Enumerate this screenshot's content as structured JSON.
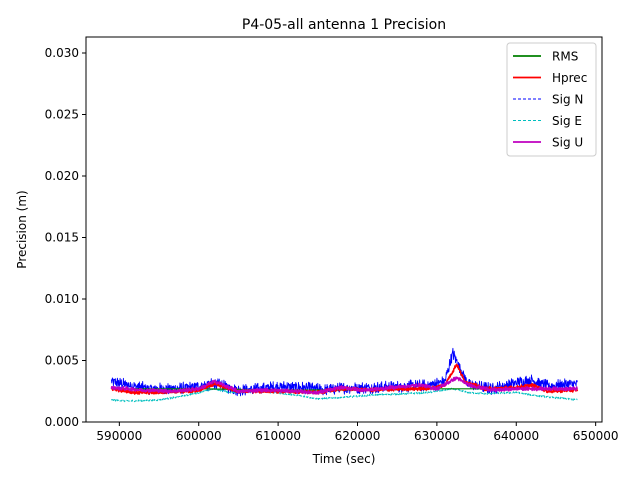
{
  "chart_data": {
    "type": "line",
    "title": "P4-05-all antenna 1 Precision",
    "xlabel": "Time (sec)",
    "ylabel": "Precision (m)",
    "xlim": [
      585800,
      650800
    ],
    "ylim": [
      0.0,
      0.0313
    ],
    "xticks": [
      590000,
      600000,
      610000,
      620000,
      630000,
      640000,
      650000
    ],
    "xtick_labels": [
      "590000",
      "600000",
      "610000",
      "620000",
      "630000",
      "640000",
      "650000"
    ],
    "yticks": [
      0.0,
      0.005,
      0.01,
      0.015,
      0.02,
      0.025,
      0.03
    ],
    "ytick_labels": [
      "0.000",
      "0.005",
      "0.010",
      "0.015",
      "0.020",
      "0.025",
      "0.030"
    ],
    "legend_position": "top-right",
    "x_range": [
      589000,
      647700
    ],
    "series": [
      {
        "name": "RMS",
        "color": "#008000",
        "style": "solid",
        "noise": 0,
        "points": [
          [
            589000,
            0.0027
          ],
          [
            600000,
            0.0027
          ],
          [
            610000,
            0.0026
          ],
          [
            620000,
            0.0026
          ],
          [
            630000,
            0.0027
          ],
          [
            640000,
            0.0027
          ],
          [
            647700,
            0.0027
          ]
        ]
      },
      {
        "name": "Hprec",
        "color": "#ff0000",
        "style": "solid",
        "noise": 0.00015,
        "points": [
          [
            589000,
            0.0027
          ],
          [
            592000,
            0.0024
          ],
          [
            596000,
            0.0024
          ],
          [
            600000,
            0.0026
          ],
          [
            602000,
            0.0031
          ],
          [
            605000,
            0.0025
          ],
          [
            610000,
            0.0025
          ],
          [
            615000,
            0.0024
          ],
          [
            618000,
            0.0027
          ],
          [
            622000,
            0.0026
          ],
          [
            626000,
            0.0027
          ],
          [
            629000,
            0.0027
          ],
          [
            631000,
            0.003
          ],
          [
            632500,
            0.0047
          ],
          [
            633500,
            0.0033
          ],
          [
            636000,
            0.0027
          ],
          [
            640000,
            0.0028
          ],
          [
            642000,
            0.003
          ],
          [
            644000,
            0.0025
          ],
          [
            647700,
            0.0026
          ]
        ]
      },
      {
        "name": "Sig N",
        "color": "#0000ff",
        "style": "dashed",
        "noise": 0.0005,
        "points": [
          [
            589000,
            0.0033
          ],
          [
            591000,
            0.003
          ],
          [
            594000,
            0.0027
          ],
          [
            597000,
            0.0027
          ],
          [
            600000,
            0.0029
          ],
          [
            602000,
            0.0031
          ],
          [
            605000,
            0.0026
          ],
          [
            608000,
            0.0027
          ],
          [
            610000,
            0.0029
          ],
          [
            613000,
            0.0028
          ],
          [
            616000,
            0.0026
          ],
          [
            619000,
            0.0028
          ],
          [
            622000,
            0.0028
          ],
          [
            626000,
            0.0029
          ],
          [
            629000,
            0.003
          ],
          [
            631000,
            0.0033
          ],
          [
            632000,
            0.0056
          ],
          [
            633000,
            0.0043
          ],
          [
            634000,
            0.003
          ],
          [
            637000,
            0.0027
          ],
          [
            640000,
            0.0032
          ],
          [
            642000,
            0.0034
          ],
          [
            644000,
            0.0029
          ],
          [
            647700,
            0.0031
          ]
        ]
      },
      {
        "name": "Sig E",
        "color": "#00bfbf",
        "style": "dashed",
        "noise": 8e-05,
        "points": [
          [
            589000,
            0.0018
          ],
          [
            591000,
            0.0017
          ],
          [
            595000,
            0.0018
          ],
          [
            598000,
            0.0021
          ],
          [
            600000,
            0.0024
          ],
          [
            602000,
            0.0027
          ],
          [
            604000,
            0.0024
          ],
          [
            608000,
            0.0025
          ],
          [
            612000,
            0.0022
          ],
          [
            615000,
            0.0019
          ],
          [
            618000,
            0.002
          ],
          [
            622000,
            0.0022
          ],
          [
            626000,
            0.0023
          ],
          [
            629000,
            0.0024
          ],
          [
            632000,
            0.0027
          ],
          [
            634000,
            0.0024
          ],
          [
            636000,
            0.0023
          ],
          [
            640000,
            0.0024
          ],
          [
            643000,
            0.0021
          ],
          [
            647700,
            0.0018
          ]
        ]
      },
      {
        "name": "Sig U",
        "color": "#bf00bf",
        "style": "solid",
        "noise": 0.00015,
        "points": [
          [
            589000,
            0.0028
          ],
          [
            593000,
            0.0026
          ],
          [
            597000,
            0.0025
          ],
          [
            600000,
            0.0027
          ],
          [
            602000,
            0.0033
          ],
          [
            605000,
            0.0025
          ],
          [
            608000,
            0.0026
          ],
          [
            612000,
            0.0025
          ],
          [
            615000,
            0.0024
          ],
          [
            618000,
            0.0028
          ],
          [
            621000,
            0.0026
          ],
          [
            626000,
            0.0029
          ],
          [
            628000,
            0.003
          ],
          [
            630000,
            0.0027
          ],
          [
            632500,
            0.0036
          ],
          [
            634000,
            0.003
          ],
          [
            637000,
            0.0026
          ],
          [
            640000,
            0.0027
          ],
          [
            643000,
            0.0027
          ],
          [
            647700,
            0.0027
          ]
        ]
      }
    ]
  }
}
